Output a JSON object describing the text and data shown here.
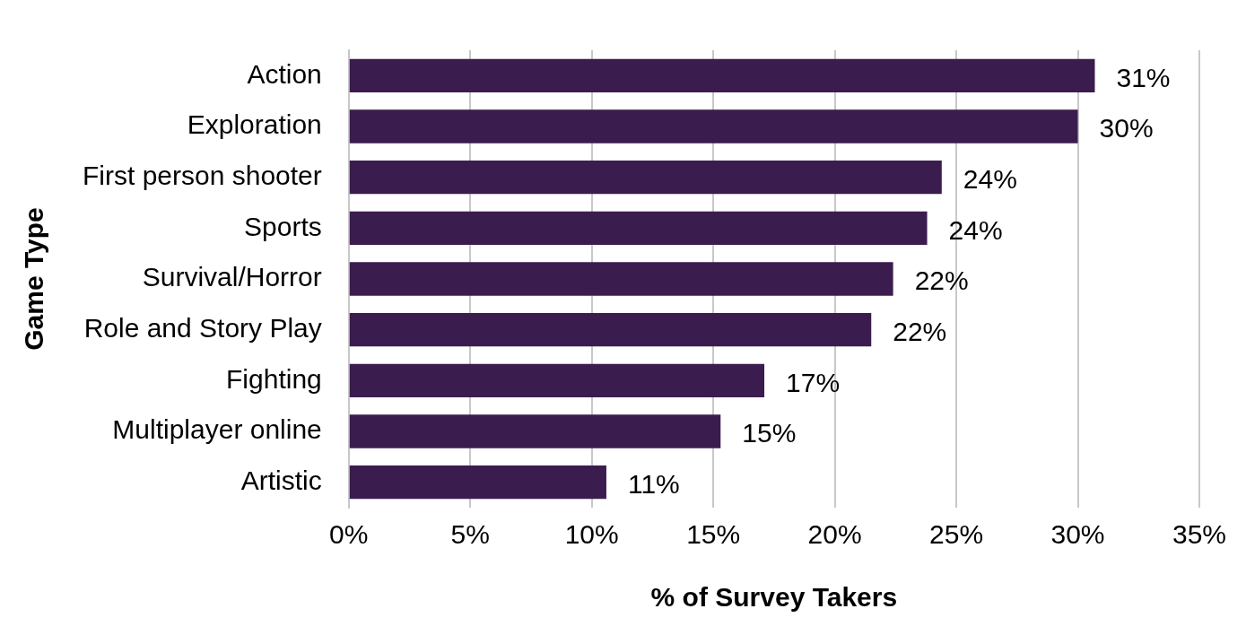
{
  "chart_data": {
    "type": "bar",
    "orientation": "horizontal",
    "xlabel": "% of Survey Takers",
    "ylabel": "Game Type",
    "categories": [
      "Action",
      "Exploration",
      "First person shooter",
      "Sports",
      "Survival/Horror",
      "Role and Story Play",
      "Fighting",
      "Multiplayer online",
      "Artistic"
    ],
    "values": [
      30.7,
      30.0,
      24.4,
      23.8,
      22.4,
      21.5,
      17.1,
      15.3,
      10.6
    ],
    "value_labels": [
      "31%",
      "30%",
      "24%",
      "24%",
      "22%",
      "22%",
      "17%",
      "15%",
      "11%"
    ],
    "color": "#3b1c4f",
    "xlim": [
      0,
      35
    ],
    "xticks": [
      {
        "value": 0,
        "label": "0%"
      },
      {
        "value": 5,
        "label": "5%"
      },
      {
        "value": 10,
        "label": "10%"
      },
      {
        "value": 15,
        "label": "15%"
      },
      {
        "value": 20,
        "label": "20%"
      },
      {
        "value": 25,
        "label": "25%"
      },
      {
        "value": 30,
        "label": "30%"
      },
      {
        "value": 35,
        "label": "35%"
      }
    ],
    "grid": "x",
    "legend": false
  }
}
